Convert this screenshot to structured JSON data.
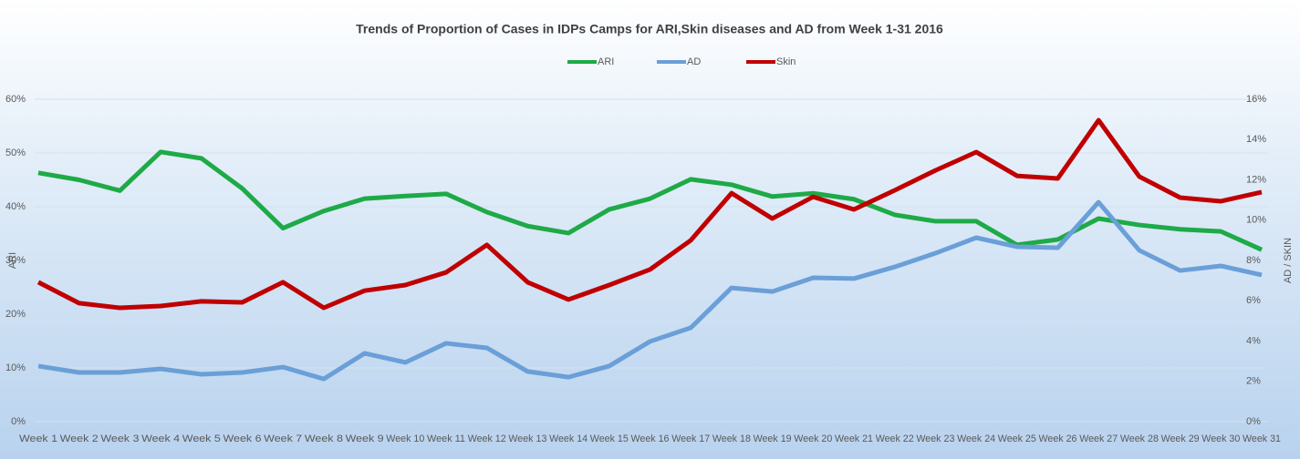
{
  "chart_data": {
    "type": "line",
    "title": "Trends of Proportion of Cases in IDPs Camps for ARI,Skin diseases and AD from Week 1-31 2016",
    "y_label": "ARI",
    "y2_label": "AD / SKIN",
    "categories": [
      "Week 1",
      "Week 2",
      "Week 3",
      "Week 4",
      "Week 5",
      "Week 6",
      "Week 7",
      "Week 8",
      "Week 9",
      "Week 10",
      "Week 11",
      "Week 12",
      "Week 13",
      "Week 14",
      "Week 15",
      "Week 16",
      "Week 17",
      "Week 18",
      "Week 19",
      "Week 20",
      "Week 21",
      "Week 22",
      "Week 23",
      "Week 24",
      "Week 25",
      "Week 26",
      "Week 27",
      "Week 28",
      "Week 29",
      "Week 30",
      "Week 31"
    ],
    "series": [
      {
        "name": "ARI",
        "color": "#1eaa47",
        "values": [
          46.3,
          45,
          43,
          50.2,
          49,
          43.4,
          36,
          39.2,
          41.5,
          42,
          42.4,
          39,
          36.4,
          35.1,
          39.5,
          41.5,
          45.1,
          44.1,
          41.9,
          42.5,
          41.4,
          38.5,
          37.3,
          37.3,
          32.9,
          33.9,
          37.8,
          36.6,
          35.8,
          35.4,
          32
        ]
      },
      {
        "name": "AD",
        "color": "#6a9fd8",
        "axis": "y2",
        "values": [
          2.76,
          2.44,
          2.44,
          2.62,
          2.35,
          2.44,
          2.71,
          2.12,
          3.39,
          2.94,
          3.89,
          3.66,
          2.49,
          2.21,
          2.76,
          3.98,
          4.66,
          6.64,
          6.46,
          7.14,
          7.1,
          7.68,
          8.36,
          9.13,
          8.68,
          8.63,
          10.89,
          8.5,
          7.5,
          7.73,
          7.28
        ]
      },
      {
        "name": "Skin",
        "color": "#c00000",
        "axis": "y2",
        "values": [
          6.92,
          5.88,
          5.65,
          5.74,
          5.97,
          5.92,
          6.92,
          5.65,
          6.5,
          6.78,
          7.41,
          8.77,
          6.92,
          6.06,
          6.78,
          7.55,
          9,
          11.34,
          10.08,
          11.16,
          10.53,
          11.48,
          12.47,
          13.38,
          12.2,
          12.07,
          14.96,
          12.16,
          11.12,
          10.94,
          11.39
        ]
      }
    ],
    "ylim": [
      0,
      60
    ],
    "yticks": [
      {
        "value": 0,
        "label": "0%"
      },
      {
        "value": 10,
        "label": "10%"
      },
      {
        "value": 20,
        "label": "20%"
      },
      {
        "value": 30,
        "label": "30%"
      },
      {
        "value": 40,
        "label": "40%"
      },
      {
        "value": 50,
        "label": "50%"
      },
      {
        "value": 60,
        "label": "60%"
      }
    ],
    "y2lim": [
      0,
      16
    ],
    "y2ticks": [
      {
        "value": 0,
        "label": "0%"
      },
      {
        "value": 2,
        "label": "2%"
      },
      {
        "value": 4,
        "label": "4%"
      },
      {
        "value": 6,
        "label": "6%"
      },
      {
        "value": 8,
        "label": "8%"
      },
      {
        "value": 10,
        "label": "10%"
      },
      {
        "value": 12,
        "label": "12%"
      },
      {
        "value": 14,
        "label": "14%"
      },
      {
        "value": 16,
        "label": "16%"
      }
    ],
    "grid": true,
    "legend": "top"
  }
}
